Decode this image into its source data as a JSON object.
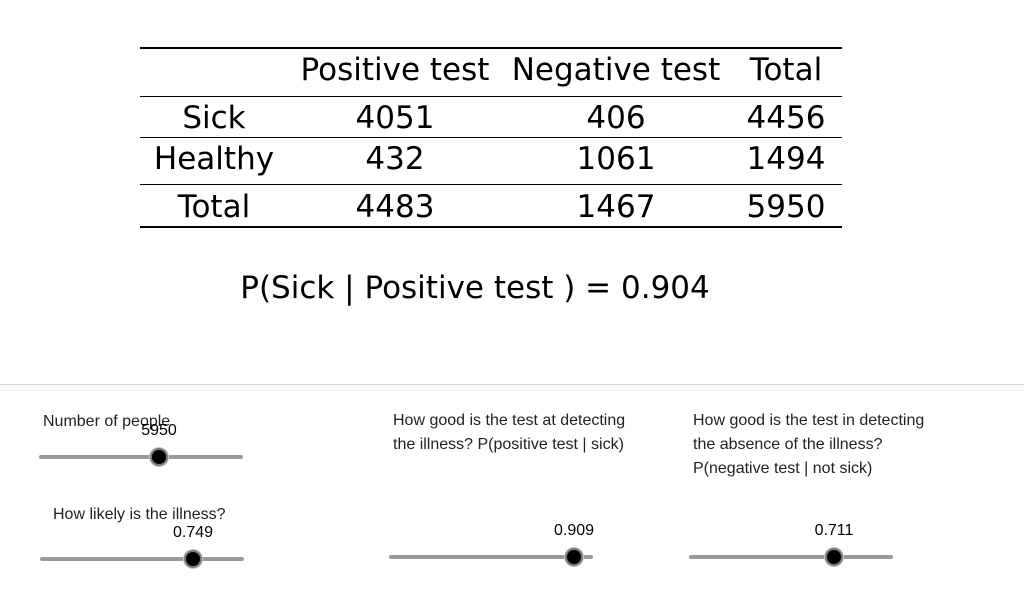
{
  "table": {
    "headers": [
      "",
      "Positive test",
      "Negative test",
      "Total"
    ],
    "rows": [
      {
        "label": "Sick",
        "positive": "4051",
        "negative": "406",
        "total": "4456"
      },
      {
        "label": "Healthy",
        "positive": "432",
        "negative": "1061",
        "total": "1494"
      },
      {
        "label": "Total",
        "positive": "4483",
        "negative": "1467",
        "total": "5950"
      }
    ]
  },
  "formula": {
    "text": "P(Sick | Positive test ) = 0.904"
  },
  "sliders": [
    {
      "id": "people",
      "label_lines": [
        "Number of people"
      ],
      "value": "5950",
      "fraction": 0.59
    },
    {
      "id": "prevalence",
      "label_lines": [
        "How likely is the illness?"
      ],
      "value": "0.749",
      "fraction": 0.749
    },
    {
      "id": "sensitivity",
      "label_lines": [
        "How good is the test at detecting",
        "the illness? P(positive test | sick)"
      ],
      "value": "0.909",
      "fraction": 0.909
    },
    {
      "id": "specificity",
      "label_lines": [
        "How good is the test in detecting",
        "the absence of the illness?",
        "P(negative test | not sick)"
      ],
      "value": "0.711",
      "fraction": 0.711
    }
  ]
}
